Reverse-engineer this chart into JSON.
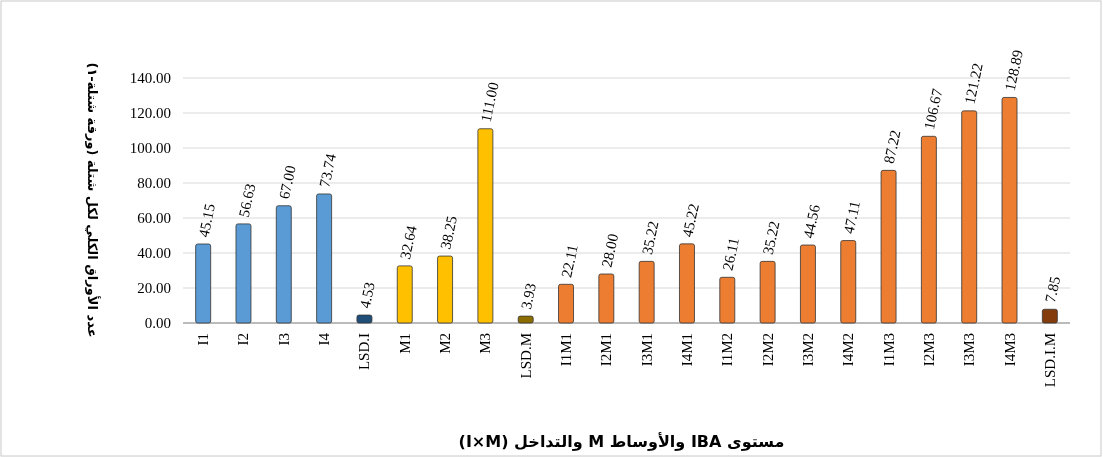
{
  "chart_data": {
    "type": "bar",
    "xlabel": "مستوى IBA والأوساط M والتداخل (I×M)",
    "ylabel": "عدد الأوراق الكلي لكل شتلة (ورقة شتلة-١)",
    "categories": [
      "I1",
      "I2",
      "I3",
      "I4",
      "LSD.I",
      "M1",
      "M2",
      "M3",
      "LSD.M",
      "I1M1",
      "I2M1",
      "I3M1",
      "I4M1",
      "I1M2",
      "I2M2",
      "I3M2",
      "I4M2",
      "I1M3",
      "I2M3",
      "I3M3",
      "I4M3",
      "LSD.I.M"
    ],
    "values": [
      45.15,
      56.63,
      67.0,
      73.74,
      4.53,
      32.64,
      38.25,
      111.0,
      3.93,
      22.11,
      28.0,
      35.22,
      45.22,
      26.11,
      35.22,
      44.56,
      47.11,
      87.22,
      106.67,
      121.22,
      128.89,
      7.85
    ],
    "value_labels": [
      "45.15",
      "56.63",
      "67.00",
      "73.74",
      "4.53",
      "32.64",
      "38.25",
      "111.00",
      "3.93",
      "22.11",
      "28.00",
      "35.22",
      "45.22",
      "26.11",
      "35.22",
      "44.56",
      "47.11",
      "87.22",
      "106.67",
      "121.22",
      "128.89",
      "7.85"
    ],
    "colors": [
      "#5b9bd5",
      "#5b9bd5",
      "#5b9bd5",
      "#5b9bd5",
      "#1f4e79",
      "#ffc000",
      "#ffc000",
      "#ffc000",
      "#8c6d00",
      "#ed7d31",
      "#ed7d31",
      "#ed7d31",
      "#ed7d31",
      "#ed7d31",
      "#ed7d31",
      "#ed7d31",
      "#ed7d31",
      "#ed7d31",
      "#ed7d31",
      "#ed7d31",
      "#ed7d31",
      "#843c0c"
    ],
    "ylim": [
      0,
      140
    ],
    "yticks": [
      {
        "value": 0,
        "label": "0.00"
      },
      {
        "value": 20,
        "label": "20.00"
      },
      {
        "value": 40,
        "label": "40.00"
      },
      {
        "value": 60,
        "label": "60.00"
      },
      {
        "value": 80,
        "label": "80.00"
      },
      {
        "value": 100,
        "label": "100.00"
      },
      {
        "value": 120,
        "label": "120.00"
      },
      {
        "value": 140,
        "label": "140.00"
      }
    ],
    "grid": "y"
  }
}
